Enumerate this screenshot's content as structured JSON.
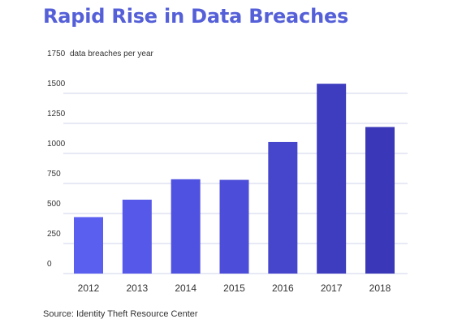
{
  "chart_data": {
    "type": "bar",
    "title": "Rapid Rise in Data Breaches",
    "ylabel": "data breaches per year",
    "xlabel": "",
    "categories": [
      "2012",
      "2013",
      "2014",
      "2015",
      "2016",
      "2017",
      "2018"
    ],
    "values": [
      470,
      615,
      785,
      780,
      1095,
      1580,
      1220
    ],
    "ylim": [
      0,
      1750
    ],
    "yticks": [
      0,
      250,
      500,
      750,
      1000,
      1250,
      1500,
      1750
    ],
    "grid": true,
    "bar_colors": [
      "#5b5ff0",
      "#5558e8",
      "#4f51e0",
      "#4c4dd8",
      "#4546cc",
      "#3e3dc0",
      "#3a38b8"
    ],
    "grid_color": "#cfd3e8",
    "source": "Source: Identity Theft Resource Center"
  }
}
